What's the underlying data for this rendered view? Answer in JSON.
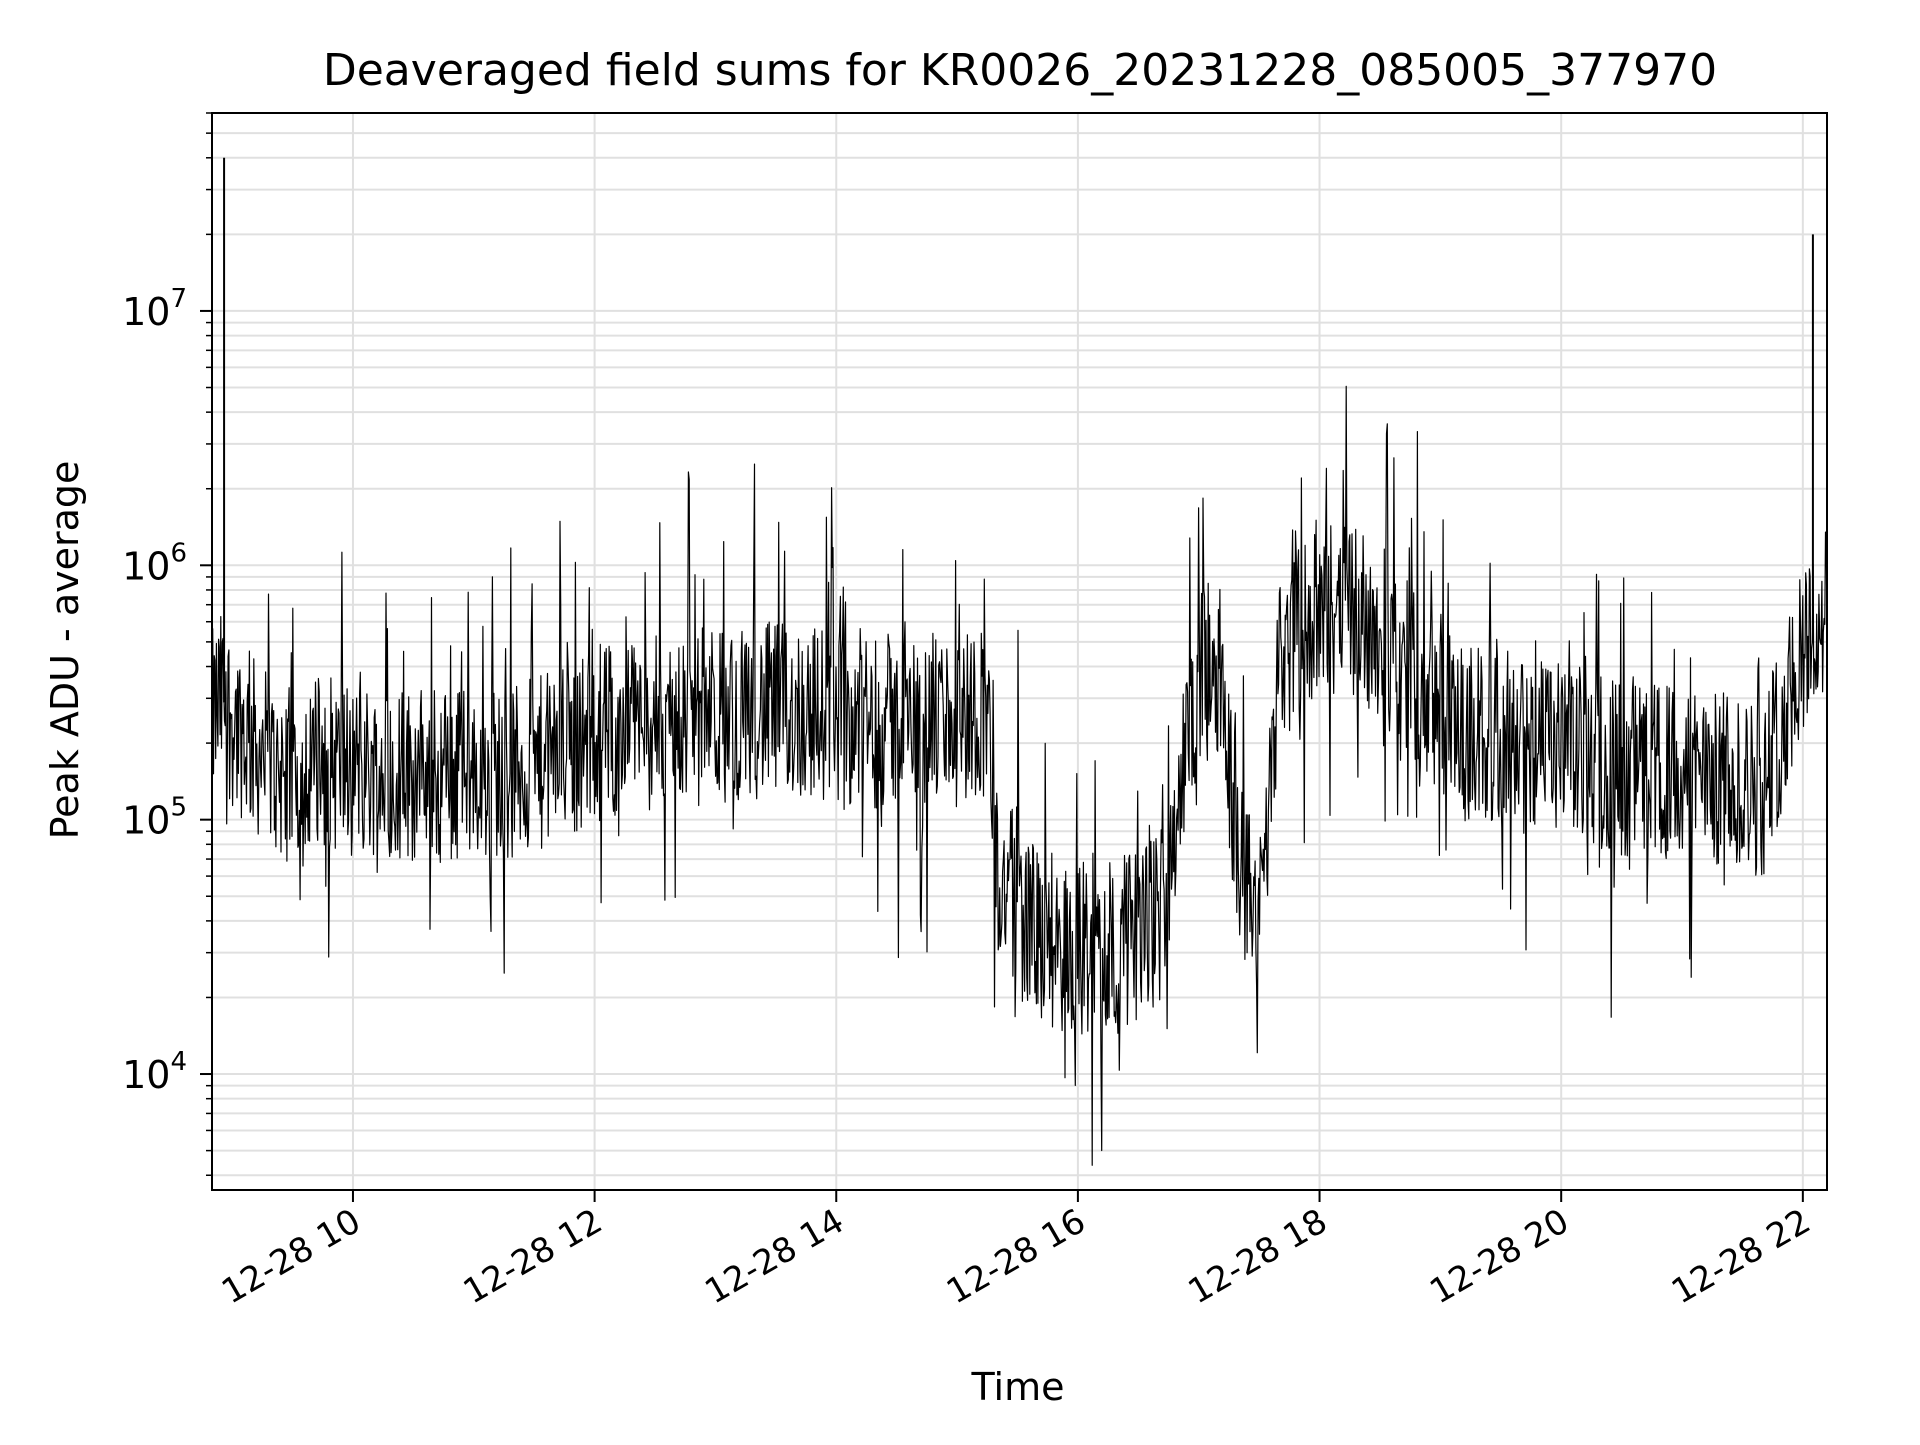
{
  "chart_data": {
    "type": "line",
    "title": "Deaveraged field sums for KR0026_20231228_085005_377970",
    "xlabel": "Time",
    "ylabel": "Peak ADU - average",
    "x_scale": "time",
    "y_scale": "log",
    "xlim": [
      "2023-12-28 08:50",
      "2023-12-28 22:12"
    ],
    "ylim": [
      3500,
      60000000
    ],
    "x_ticks": [
      {
        "value": "2023-12-28 10:00",
        "label": "12-28 10"
      },
      {
        "value": "2023-12-28 12:00",
        "label": "12-28 12"
      },
      {
        "value": "2023-12-28 14:00",
        "label": "12-28 14"
      },
      {
        "value": "2023-12-28 16:00",
        "label": "12-28 16"
      },
      {
        "value": "2023-12-28 18:00",
        "label": "12-28 18"
      },
      {
        "value": "2023-12-28 20:00",
        "label": "12-28 20"
      },
      {
        "value": "2023-12-28 22:00",
        "label": "12-28 22"
      }
    ],
    "y_ticks": [
      {
        "value": 10000,
        "base": "10",
        "exp": "4"
      },
      {
        "value": 100000,
        "base": "10",
        "exp": "5"
      },
      {
        "value": 1000000,
        "base": "10",
        "exp": "6"
      },
      {
        "value": 10000000,
        "base": "10",
        "exp": "7"
      }
    ],
    "grid": true,
    "line_color": "#000000",
    "grid_color": "#e0e0e0",
    "series": [
      {
        "x": [
          "2023-12-28 08:50",
          "2023-12-28 08:55",
          "2023-12-28 09:00",
          "2023-12-28 09:10",
          "2023-12-28 09:20",
          "2023-12-28 09:30",
          "2023-12-28 09:45",
          "2023-12-28 10:00",
          "2023-12-28 10:30",
          "2023-12-28 11:00",
          "2023-12-28 11:30",
          "2023-12-28 12:00",
          "2023-12-28 12:30",
          "2023-12-28 13:00",
          "2023-12-28 13:30",
          "2023-12-28 14:00",
          "2023-12-28 14:30",
          "2023-12-28 15:00",
          "2023-12-28 15:15",
          "2023-12-28 15:20",
          "2023-12-28 15:40",
          "2023-12-28 16:00",
          "2023-12-28 16:20",
          "2023-12-28 16:40",
          "2023-12-28 16:50",
          "2023-12-28 17:00",
          "2023-12-28 17:10",
          "2023-12-28 17:20",
          "2023-12-28 17:30",
          "2023-12-28 17:40",
          "2023-12-28 18:00",
          "2023-12-28 18:20",
          "2023-12-28 18:40",
          "2023-12-28 19:00",
          "2023-12-28 19:30",
          "2023-12-28 20:00",
          "2023-12-28 20:30",
          "2023-12-28 21:00",
          "2023-12-28 21:30",
          "2023-12-28 21:40",
          "2023-12-28 21:50",
          "2023-12-28 22:00",
          "2023-12-28 22:12"
        ],
        "y": [
          250000,
          300000,
          250000,
          200000,
          160000,
          150000,
          170000,
          160000,
          150000,
          150000,
          160000,
          220000,
          240000,
          260000,
          270000,
          260000,
          240000,
          250000,
          280000,
          60000,
          35000,
          30000,
          32000,
          40000,
          120000,
          350000,
          420000,
          70000,
          40000,
          450000,
          700000,
          650000,
          450000,
          250000,
          200000,
          190000,
          160000,
          150000,
          140000,
          130000,
          250000,
          500000,
          650000
        ]
      }
    ],
    "annotations": [
      {
        "x": "2023-12-28 08:56",
        "y": 40000000,
        "note": "spike"
      },
      {
        "x": "2023-12-28 22:05",
        "y": 20000000,
        "note": "spike"
      }
    ]
  }
}
